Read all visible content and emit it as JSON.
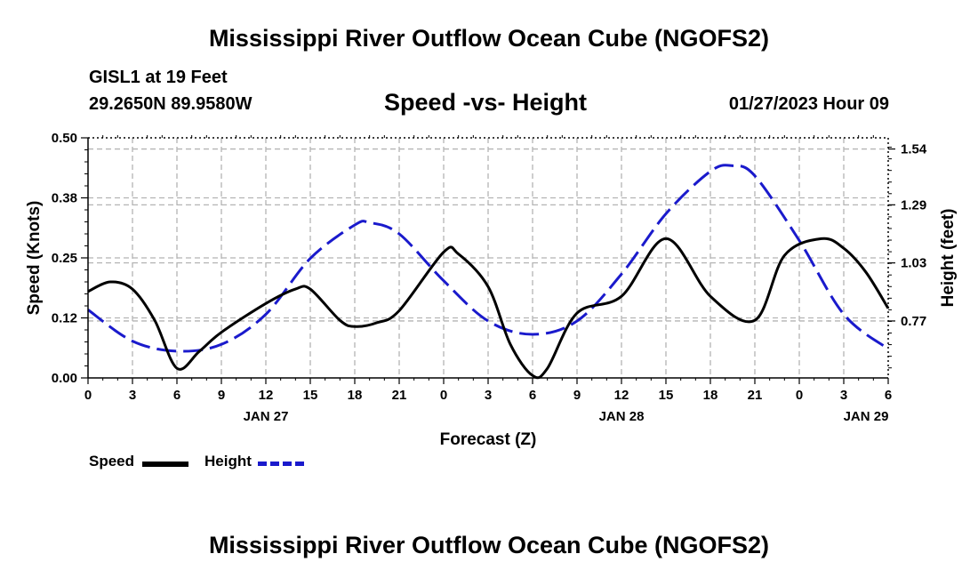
{
  "header": {
    "title": "Mississippi River Outflow Ocean Cube (NGOFS2)",
    "station": "GISL1 at 19 Feet",
    "coordinates": "29.2650N  89.9580W",
    "chart_title": "Speed -vs- Height",
    "datetime": "01/27/2023 Hour 09"
  },
  "footer": {
    "title": "Mississippi River Outflow Ocean Cube (NGOFS2)"
  },
  "legend": {
    "speed_label": "Speed",
    "height_label": "Height"
  },
  "colors": {
    "speed": "#000000",
    "height": "#1a1acc",
    "grid": "#b4b4b4"
  },
  "chart_data": {
    "type": "line",
    "title": "Speed -vs- Height",
    "xlabel": "Forecast (Z)",
    "ylabel_left": "Speed (Knots)",
    "ylabel_right": "Height (feet)",
    "x_range_hours": [
      0,
      54
    ],
    "x_ticks": [
      {
        "hour": 0,
        "label": "0"
      },
      {
        "hour": 3,
        "label": "3"
      },
      {
        "hour": 6,
        "label": "6"
      },
      {
        "hour": 9,
        "label": "9"
      },
      {
        "hour": 12,
        "label": "12"
      },
      {
        "hour": 15,
        "label": "15"
      },
      {
        "hour": 18,
        "label": "18"
      },
      {
        "hour": 21,
        "label": "21"
      },
      {
        "hour": 24,
        "label": "0"
      },
      {
        "hour": 27,
        "label": "3"
      },
      {
        "hour": 30,
        "label": "6"
      },
      {
        "hour": 33,
        "label": "9"
      },
      {
        "hour": 36,
        "label": "12"
      },
      {
        "hour": 39,
        "label": "15"
      },
      {
        "hour": 42,
        "label": "18"
      },
      {
        "hour": 45,
        "label": "21"
      },
      {
        "hour": 48,
        "label": "0"
      },
      {
        "hour": 51,
        "label": "3"
      },
      {
        "hour": 54,
        "label": "6"
      }
    ],
    "date_labels": [
      {
        "hour": 12,
        "label": "JAN 27"
      },
      {
        "hour": 36,
        "label": "JAN 28"
      },
      {
        "hour": 52.5,
        "label": "JAN 29"
      }
    ],
    "ylim_left": [
      0,
      0.5
    ],
    "yticks_left": [
      {
        "value": 0.0,
        "label": "0.00"
      },
      {
        "value": 0.125,
        "label": "0.12"
      },
      {
        "value": 0.25,
        "label": "0.25"
      },
      {
        "value": 0.375,
        "label": "0.38"
      },
      {
        "value": 0.5,
        "label": "0.50"
      }
    ],
    "ylim_right": [
      0.515,
      1.59
    ],
    "yticks_right": [
      {
        "value": 0.77,
        "label": "0.77"
      },
      {
        "value": 1.03,
        "label": "1.03"
      },
      {
        "value": 1.29,
        "label": "1.29"
      },
      {
        "value": 1.54,
        "label": "1.54"
      }
    ],
    "series": [
      {
        "name": "Speed",
        "axis": "left",
        "x": [
          0,
          1.5,
          3,
          4.5,
          6,
          7.5,
          9,
          12,
          14,
          15,
          17,
          18,
          19.5,
          21,
          24,
          25,
          27,
          28.5,
          30,
          31,
          33,
          36,
          39,
          42,
          45,
          47,
          49.5,
          51,
          52.5,
          54
        ],
        "y": [
          0.18,
          0.2,
          0.185,
          0.12,
          0.02,
          0.055,
          0.095,
          0.155,
          0.185,
          0.185,
          0.12,
          0.107,
          0.115,
          0.14,
          0.262,
          0.258,
          0.19,
          0.07,
          0.005,
          0.02,
          0.135,
          0.17,
          0.29,
          0.17,
          0.12,
          0.255,
          0.29,
          0.27,
          0.22,
          0.145
        ]
      },
      {
        "name": "Height",
        "axis": "right",
        "x": [
          0,
          3,
          6,
          9,
          12,
          15,
          18,
          19,
          21,
          24,
          27,
          30,
          33,
          36,
          39,
          42,
          43.5,
          45,
          48,
          51,
          54
        ],
        "y": [
          0.82,
          0.68,
          0.635,
          0.665,
          0.8,
          1.05,
          1.2,
          1.21,
          1.16,
          0.95,
          0.77,
          0.71,
          0.77,
          0.98,
          1.25,
          1.44,
          1.465,
          1.42,
          1.13,
          0.8,
          0.645
        ]
      }
    ]
  }
}
